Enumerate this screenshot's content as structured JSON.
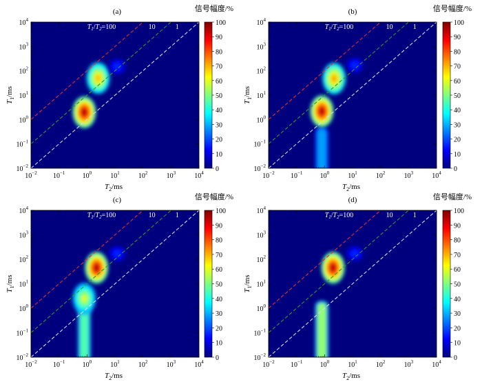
{
  "colorbar": {
    "title": "信号幅度/%",
    "ticks": [
      "0",
      "10",
      "20",
      "30",
      "40",
      "50",
      "60",
      "70",
      "80",
      "90",
      "100"
    ],
    "stops": [
      "#00007f",
      "#0000ff",
      "#007fff",
      "#00ffff",
      "#7fff7f",
      "#ffff00",
      "#ff7f00",
      "#ff0000",
      "#7f0000"
    ]
  },
  "colors": {
    "background": "#00007f",
    "ratio_100": "#e03030",
    "ratio_10": "#2f9a2f",
    "ratio_1": "#d8d8f0"
  },
  "chart_data": [
    {
      "type": "heatmap",
      "title": "(a)",
      "xlabel_base": "T",
      "xlabel_sub": "2",
      "xlabel_unit": "/ms",
      "ylabel_base": "T",
      "ylabel_sub": "1",
      "ylabel_unit": "/ms",
      "x_log_range": [
        -2,
        4
      ],
      "y_log_range": [
        -2,
        4
      ],
      "tick_exponents": [
        "−2",
        "−1",
        "0",
        "1",
        "2",
        "3",
        "4"
      ],
      "ratio_labels": [
        "T1/T2=100",
        "10",
        "1"
      ],
      "ratio_label_parts": {
        "t1": "T",
        "t1_sub": "1",
        "slash": "/",
        "t2": "T",
        "t2_sub": "2",
        "value": "=100"
      },
      "ratio_lines": [
        100,
        10,
        1
      ],
      "peaks": [
        {
          "t2_ms": 0.8,
          "t1_ms": 2.0,
          "amplitude": 100
        },
        {
          "t2_ms": 2.5,
          "t1_ms": 50,
          "amplitude": 72
        },
        {
          "t2_ms": 12,
          "t1_ms": 150,
          "amplitude": 18
        }
      ],
      "tail": null
    },
    {
      "type": "heatmap",
      "title": "(b)",
      "xlabel_base": "T",
      "xlabel_sub": "2",
      "xlabel_unit": "/ms",
      "ylabel_base": "T",
      "ylabel_sub": "1",
      "ylabel_unit": "/ms",
      "x_log_range": [
        -2,
        4
      ],
      "y_log_range": [
        -2,
        4
      ],
      "tick_exponents": [
        "−2",
        "−1",
        "0",
        "1",
        "2",
        "3",
        "4"
      ],
      "ratio_labels": [
        "T1/T2=100",
        "10",
        "1"
      ],
      "ratio_label_parts": {
        "t1": "T",
        "t1_sub": "1",
        "slash": "/",
        "t2": "T",
        "t2_sub": "2",
        "value": "=100"
      },
      "ratio_lines": [
        100,
        10,
        1
      ],
      "peaks": [
        {
          "t2_ms": 0.8,
          "t1_ms": 2.2,
          "amplitude": 100
        },
        {
          "t2_ms": 2.2,
          "t1_ms": 48,
          "amplitude": 75
        },
        {
          "t2_ms": 12,
          "t1_ms": 170,
          "amplitude": 18
        }
      ],
      "tail": {
        "t2_ms": 0.8,
        "t1_from_ms": 0.01,
        "t1_to_ms": 0.5,
        "amplitude": 28
      }
    },
    {
      "type": "heatmap",
      "title": "(c)",
      "xlabel_base": "T",
      "xlabel_sub": "2",
      "xlabel_unit": "/ms",
      "ylabel_base": "T",
      "ylabel_sub": "1",
      "ylabel_unit": "/ms",
      "x_log_range": [
        -2,
        4
      ],
      "y_log_range": [
        -2,
        4
      ],
      "tick_exponents": [
        "−2",
        "−1",
        "0",
        "1",
        "2",
        "3",
        "4"
      ],
      "ratio_labels": [
        "T1/T2=100",
        "10",
        "1"
      ],
      "ratio_label_parts": {
        "t1": "T",
        "t1_sub": "1",
        "slash": "/",
        "t2": "T",
        "t2_sub": "2",
        "value": "=100"
      },
      "ratio_lines": [
        100,
        10,
        1
      ],
      "peaks": [
        {
          "t2_ms": 0.8,
          "t1_ms": 2.5,
          "amplitude": 62
        },
        {
          "t2_ms": 2.2,
          "t1_ms": 45,
          "amplitude": 100
        },
        {
          "t2_ms": 12,
          "t1_ms": 170,
          "amplitude": 18
        }
      ],
      "tail": {
        "t2_ms": 0.8,
        "t1_from_ms": 0.01,
        "t1_to_ms": 1.5,
        "amplitude": 45
      }
    },
    {
      "type": "heatmap",
      "title": "(d)",
      "xlabel_base": "T",
      "xlabel_sub": "2",
      "xlabel_unit": "/ms",
      "ylabel_base": "T",
      "ylabel_sub": "1",
      "ylabel_unit": "/ms",
      "x_log_range": [
        -2,
        4
      ],
      "y_log_range": [
        -2,
        4
      ],
      "tick_exponents": [
        "−2",
        "−1",
        "0",
        "1",
        "2",
        "3",
        "4"
      ],
      "ratio_labels": [
        "T1/T2=100",
        "10",
        "1"
      ],
      "ratio_label_parts": {
        "t1": "T",
        "t1_sub": "1",
        "slash": "/",
        "t2": "T",
        "t2_sub": "2",
        "value": "=100"
      },
      "ratio_lines": [
        100,
        10,
        1
      ],
      "peaks": [
        {
          "t2_ms": 2.0,
          "t1_ms": 45,
          "amplitude": 100
        },
        {
          "t2_ms": 12,
          "t1_ms": 170,
          "amplitude": 18
        }
      ],
      "tail": {
        "t2_ms": 0.8,
        "t1_from_ms": 0.01,
        "t1_to_ms": 2.0,
        "amplitude": 52
      }
    }
  ]
}
